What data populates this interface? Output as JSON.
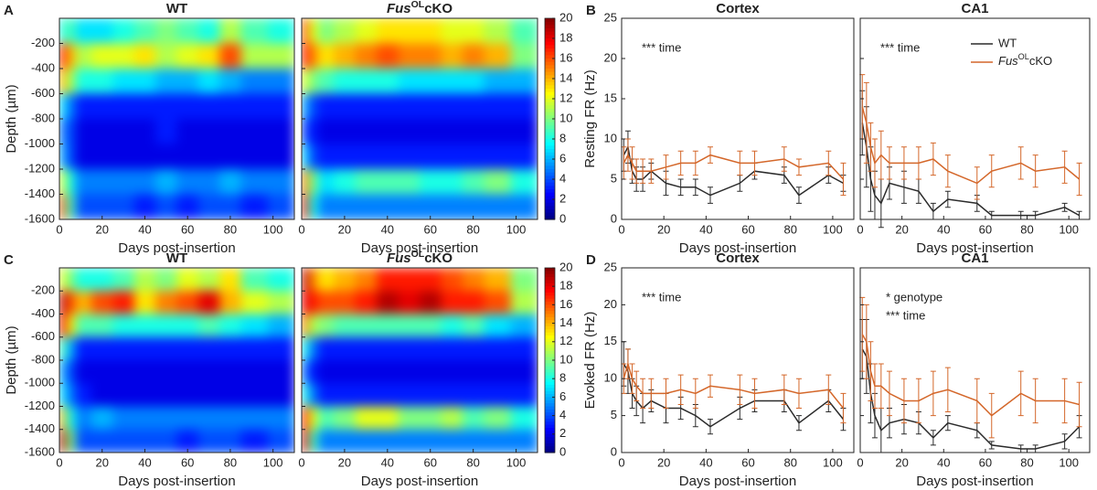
{
  "chart_data": [
    {
      "type": "heatmap",
      "panel": "A",
      "title": "WT",
      "xlabel": "Days post-insertion",
      "ylabel": "Depth (µm)",
      "x": [
        1,
        5,
        10,
        20,
        30,
        40,
        50,
        60,
        70,
        80,
        90,
        105
      ],
      "y": [
        -100,
        -300,
        -500,
        -700,
        -900,
        -1100,
        -1300,
        -1500
      ],
      "z": [
        [
          8,
          9,
          7,
          7,
          8,
          9,
          10,
          9,
          8,
          11,
          9,
          8
        ],
        [
          17,
          14,
          11,
          12,
          12,
          13,
          11,
          12,
          13,
          16,
          11,
          11
        ],
        [
          14,
          11,
          8,
          8,
          7,
          7,
          6,
          6,
          7,
          6,
          5,
          5
        ],
        [
          7,
          5,
          3,
          3,
          3,
          3,
          3,
          3,
          3,
          3,
          3,
          3
        ],
        [
          5,
          4,
          2,
          2,
          2,
          2,
          3,
          2,
          2,
          2,
          2,
          2
        ],
        [
          6,
          4,
          2,
          2,
          2,
          2,
          2,
          2,
          2,
          2,
          2,
          2
        ],
        [
          12,
          8,
          5,
          5,
          5,
          5,
          6,
          5,
          5,
          6,
          5,
          5
        ],
        [
          16,
          9,
          4,
          4,
          4,
          3,
          4,
          3,
          4,
          4,
          3,
          4
        ]
      ],
      "xlim": [
        0,
        110
      ],
      "ylim": [
        -1600,
        0
      ],
      "xticks": [
        0,
        20,
        40,
        60,
        80,
        100
      ],
      "yticks": [
        -1600,
        -1400,
        -1200,
        -1000,
        -800,
        -600,
        -400,
        -200
      ],
      "colormap": "jet",
      "zlim": [
        0,
        20
      ]
    },
    {
      "type": "heatmap",
      "title": [
        "Fus",
        "OL",
        "cKO"
      ],
      "xlabel": "Days post-insertion",
      "x": [
        1,
        5,
        10,
        20,
        30,
        40,
        50,
        60,
        70,
        80,
        90,
        105
      ],
      "y": [
        -100,
        -300,
        -500,
        -700,
        -900,
        -1100,
        -1300,
        -1500
      ],
      "z": [
        [
          16,
          12,
          10,
          11,
          12,
          13,
          13,
          13,
          12,
          12,
          11,
          9
        ],
        [
          17,
          15,
          13,
          14,
          15,
          16,
          15,
          15,
          14,
          15,
          14,
          10
        ],
        [
          12,
          10,
          9,
          8,
          8,
          8,
          7,
          7,
          7,
          7,
          6,
          6
        ],
        [
          6,
          4,
          3,
          3,
          3,
          3,
          3,
          3,
          3,
          3,
          3,
          3
        ],
        [
          4,
          3,
          2,
          2,
          2,
          2,
          2,
          2,
          2,
          2,
          2,
          2
        ],
        [
          7,
          4,
          3,
          3,
          3,
          3,
          3,
          3,
          3,
          3,
          3,
          3
        ],
        [
          15,
          10,
          7,
          8,
          9,
          9,
          9,
          8,
          8,
          9,
          10,
          8
        ],
        [
          17,
          8,
          5,
          5,
          5,
          5,
          5,
          5,
          5,
          5,
          5,
          5
        ]
      ],
      "xlim": [
        0,
        110
      ],
      "ylim": [
        -1600,
        0
      ],
      "xticks": [
        0,
        20,
        40,
        60,
        80,
        100
      ],
      "yticks": [
        -1600,
        -1400,
        -1200,
        -1000,
        -800,
        -600,
        -400,
        -200
      ],
      "colormap": "jet",
      "zlim": [
        0,
        20
      ],
      "colorbar_ticks": [
        0,
        2,
        4,
        6,
        8,
        10,
        12,
        14,
        16,
        18,
        20
      ]
    },
    {
      "type": "heatmap",
      "panel": "C",
      "title": "WT",
      "xlabel": "Days post-insertion",
      "ylabel": "Depth (µm)",
      "x": [
        1,
        5,
        10,
        20,
        30,
        40,
        50,
        60,
        70,
        80,
        90,
        105
      ],
      "y": [
        -100,
        -300,
        -500,
        -700,
        -900,
        -1100,
        -1300,
        -1500
      ],
      "z": [
        [
          12,
          10,
          8,
          8,
          9,
          11,
          10,
          12,
          11,
          13,
          9,
          8
        ],
        [
          19,
          16,
          14,
          16,
          17,
          13,
          15,
          16,
          18,
          14,
          12,
          11
        ],
        [
          18,
          13,
          9,
          9,
          8,
          8,
          8,
          8,
          9,
          8,
          7,
          6
        ],
        [
          9,
          6,
          3,
          3,
          3,
          3,
          3,
          3,
          3,
          3,
          3,
          3
        ],
        [
          6,
          4,
          2,
          2,
          2,
          2,
          2,
          2,
          2,
          2,
          2,
          2
        ],
        [
          7,
          5,
          3,
          2,
          2,
          2,
          2,
          2,
          2,
          2,
          2,
          2
        ],
        [
          14,
          8,
          5,
          6,
          5,
          5,
          5,
          5,
          5,
          5,
          5,
          5
        ],
        [
          19,
          10,
          4,
          4,
          4,
          4,
          4,
          3,
          4,
          4,
          3,
          4
        ]
      ],
      "xlim": [
        0,
        110
      ],
      "ylim": [
        -1600,
        0
      ],
      "xticks": [
        0,
        20,
        40,
        60,
        80,
        100
      ],
      "yticks": [
        -1600,
        -1400,
        -1200,
        -1000,
        -800,
        -600,
        -400,
        -200
      ],
      "colormap": "jet",
      "zlim": [
        0,
        20
      ]
    },
    {
      "type": "heatmap",
      "title": [
        "Fus",
        "OL",
        "cKO"
      ],
      "xlabel": "Days post-insertion",
      "x": [
        1,
        5,
        10,
        20,
        30,
        40,
        50,
        60,
        70,
        80,
        90,
        105
      ],
      "y": [
        -100,
        -300,
        -500,
        -700,
        -900,
        -1100,
        -1300,
        -1500
      ],
      "z": [
        [
          19,
          15,
          13,
          14,
          15,
          17,
          17,
          17,
          16,
          15,
          14,
          10
        ],
        [
          18,
          17,
          16,
          16,
          17,
          19,
          18,
          19,
          17,
          17,
          16,
          11
        ],
        [
          15,
          11,
          10,
          9,
          9,
          9,
          9,
          9,
          8,
          9,
          7,
          6
        ],
        [
          8,
          5,
          3,
          3,
          3,
          3,
          3,
          3,
          3,
          3,
          3,
          3
        ],
        [
          5,
          3,
          2,
          2,
          2,
          2,
          2,
          2,
          2,
          2,
          2,
          2
        ],
        [
          8,
          5,
          3,
          3,
          3,
          3,
          3,
          3,
          3,
          3,
          3,
          3
        ],
        [
          17,
          12,
          9,
          10,
          12,
          12,
          10,
          10,
          11,
          9,
          10,
          8
        ],
        [
          18,
          9,
          5,
          5,
          5,
          5,
          5,
          5,
          5,
          5,
          5,
          5
        ]
      ],
      "xlim": [
        0,
        110
      ],
      "ylim": [
        -1600,
        0
      ],
      "xticks": [
        0,
        20,
        40,
        60,
        80,
        100
      ],
      "yticks": [
        -1600,
        -1400,
        -1200,
        -1000,
        -800,
        -600,
        -400,
        -200
      ],
      "colormap": "jet",
      "zlim": [
        0,
        20
      ],
      "colorbar_ticks": [
        0,
        2,
        4,
        6,
        8,
        10,
        12,
        14,
        16,
        18,
        20
      ]
    },
    {
      "type": "line",
      "panel": "B",
      "title": "Cortex",
      "xlabel": "Days post-insertion",
      "ylabel": "Resting FR (Hz)",
      "x": [
        1,
        3,
        5,
        7,
        10,
        14,
        21,
        28,
        35,
        42,
        56,
        63,
        77,
        84,
        98,
        105
      ],
      "series": [
        {
          "name": "WT",
          "color": "#2b2b2b",
          "values": [
            8,
            9,
            6,
            5,
            5,
            6,
            4.5,
            4,
            4,
            3,
            4.5,
            6,
            5.5,
            3,
            5.5,
            4.5
          ],
          "errors": [
            2,
            2,
            1.5,
            1.5,
            1.5,
            1,
            1.5,
            1,
            1,
            1,
            1,
            1,
            1,
            1,
            1,
            1
          ]
        },
        {
          "name": [
            "Fus",
            "OL",
            "cKO"
          ],
          "color": "#d4672a",
          "values": [
            7,
            8,
            7,
            6,
            6,
            6,
            6.5,
            7,
            7,
            8,
            7,
            7,
            7.5,
            6.5,
            7,
            5
          ],
          "errors": [
            2,
            2,
            2,
            1.5,
            1.5,
            1.5,
            1.5,
            1.5,
            1.5,
            1,
            1.5,
            1.5,
            1.5,
            1,
            1.5,
            2
          ]
        }
      ],
      "annotations": [
        "*** time"
      ],
      "xlim": [
        0,
        110
      ],
      "ylim": [
        0,
        25
      ],
      "xticks": [
        0,
        20,
        40,
        60,
        80,
        100
      ],
      "yticks": [
        0,
        5,
        10,
        15,
        20,
        25
      ]
    },
    {
      "type": "line",
      "title": "CA1",
      "xlabel": "Days post-insertion",
      "x": [
        1,
        3,
        5,
        7,
        10,
        14,
        21,
        28,
        35,
        42,
        56,
        63,
        77,
        84,
        98,
        105
      ],
      "series": [
        {
          "name": "WT",
          "color": "#2b2b2b",
          "values": [
            12,
            9,
            5,
            3,
            2,
            4.5,
            4,
            3.5,
            1,
            2.5,
            2,
            0.5,
            0.5,
            0.5,
            1.5,
            0.5
          ],
          "errors": [
            4,
            5,
            4,
            3,
            3,
            2,
            2,
            1.5,
            1,
            1,
            1,
            0.5,
            0.5,
            0.5,
            0.5,
            0.5
          ]
        },
        {
          "name": [
            "Fus",
            "OL",
            "cKO"
          ],
          "color": "#d4672a",
          "values": [
            14,
            12,
            9,
            7,
            8,
            7,
            7,
            7,
            7.5,
            6,
            4.5,
            6,
            7,
            6,
            6.5,
            5
          ],
          "errors": [
            4,
            5,
            3,
            3,
            3,
            2,
            2,
            2,
            2,
            2,
            2,
            2,
            2,
            2,
            2,
            2
          ]
        }
      ],
      "annotations": [
        "*** time"
      ],
      "legend": "top-right",
      "xlim": [
        0,
        110
      ],
      "ylim": [
        0,
        25
      ],
      "xticks": [
        0,
        20,
        40,
        60,
        80,
        100
      ],
      "yticks": [
        0,
        5,
        10,
        15,
        20,
        25
      ]
    },
    {
      "type": "line",
      "panel": "D",
      "title": "Cortex",
      "xlabel": "Days post-insertion",
      "ylabel": "Evoked FR (Hz)",
      "x": [
        1,
        3,
        5,
        7,
        10,
        14,
        21,
        28,
        35,
        42,
        56,
        63,
        77,
        84,
        98,
        105
      ],
      "series": [
        {
          "name": "WT",
          "color": "#2b2b2b",
          "values": [
            12,
            11,
            8,
            7,
            6,
            7,
            6,
            6,
            5,
            3.5,
            6,
            7,
            7,
            4,
            7,
            4.5
          ],
          "errors": [
            3,
            3,
            2,
            2,
            2,
            1.5,
            2,
            1.5,
            1.5,
            1,
            1.5,
            1.5,
            1.5,
            1,
            1.5,
            1.5
          ]
        },
        {
          "name": [
            "Fus",
            "OL",
            "cKO"
          ],
          "color": "#d4672a",
          "values": [
            10,
            12,
            10,
            9,
            8,
            8,
            8,
            8.5,
            8,
            9,
            8.5,
            8,
            8.5,
            8,
            8.5,
            6
          ],
          "errors": [
            2,
            2,
            2,
            2,
            2,
            2,
            2,
            2,
            2,
            1.5,
            2,
            2,
            2,
            2,
            2,
            2
          ]
        }
      ],
      "annotations": [
        "*** time"
      ],
      "xlim": [
        0,
        110
      ],
      "ylim": [
        0,
        25
      ],
      "xticks": [
        0,
        20,
        40,
        60,
        80,
        100
      ],
      "yticks": [
        0,
        5,
        10,
        15,
        20,
        25
      ]
    },
    {
      "type": "line",
      "title": "CA1",
      "xlabel": "Days post-insertion",
      "x": [
        1,
        3,
        5,
        7,
        10,
        14,
        21,
        28,
        35,
        42,
        56,
        63,
        77,
        84,
        98,
        105
      ],
      "series": [
        {
          "name": "WT",
          "color": "#2b2b2b",
          "values": [
            14,
            13,
            8,
            5,
            3,
            4,
            4.5,
            4,
            2,
            4,
            3,
            1,
            0.5,
            0.5,
            1.5,
            3.5
          ],
          "errors": [
            4,
            5,
            4,
            3,
            3,
            2,
            2,
            1.5,
            1,
            1,
            1,
            0.5,
            0.5,
            0.5,
            1,
            1.5
          ]
        },
        {
          "name": [
            "Fus",
            "OL",
            "cKO"
          ],
          "color": "#d4672a",
          "values": [
            16,
            15,
            11,
            9,
            9,
            8,
            7,
            7,
            8,
            8.5,
            7,
            5,
            8,
            7,
            7,
            6.5
          ],
          "errors": [
            5,
            5,
            4,
            3,
            3,
            3,
            3,
            3,
            3,
            3,
            3,
            3,
            3,
            3,
            3,
            3
          ]
        }
      ],
      "annotations": [
        "* genotype",
        "*** time"
      ],
      "xlim": [
        0,
        110
      ],
      "ylim": [
        0,
        25
      ],
      "xticks": [
        0,
        20,
        40,
        60,
        80,
        100
      ],
      "yticks": [
        0,
        5,
        10,
        15,
        20,
        25
      ]
    }
  ]
}
